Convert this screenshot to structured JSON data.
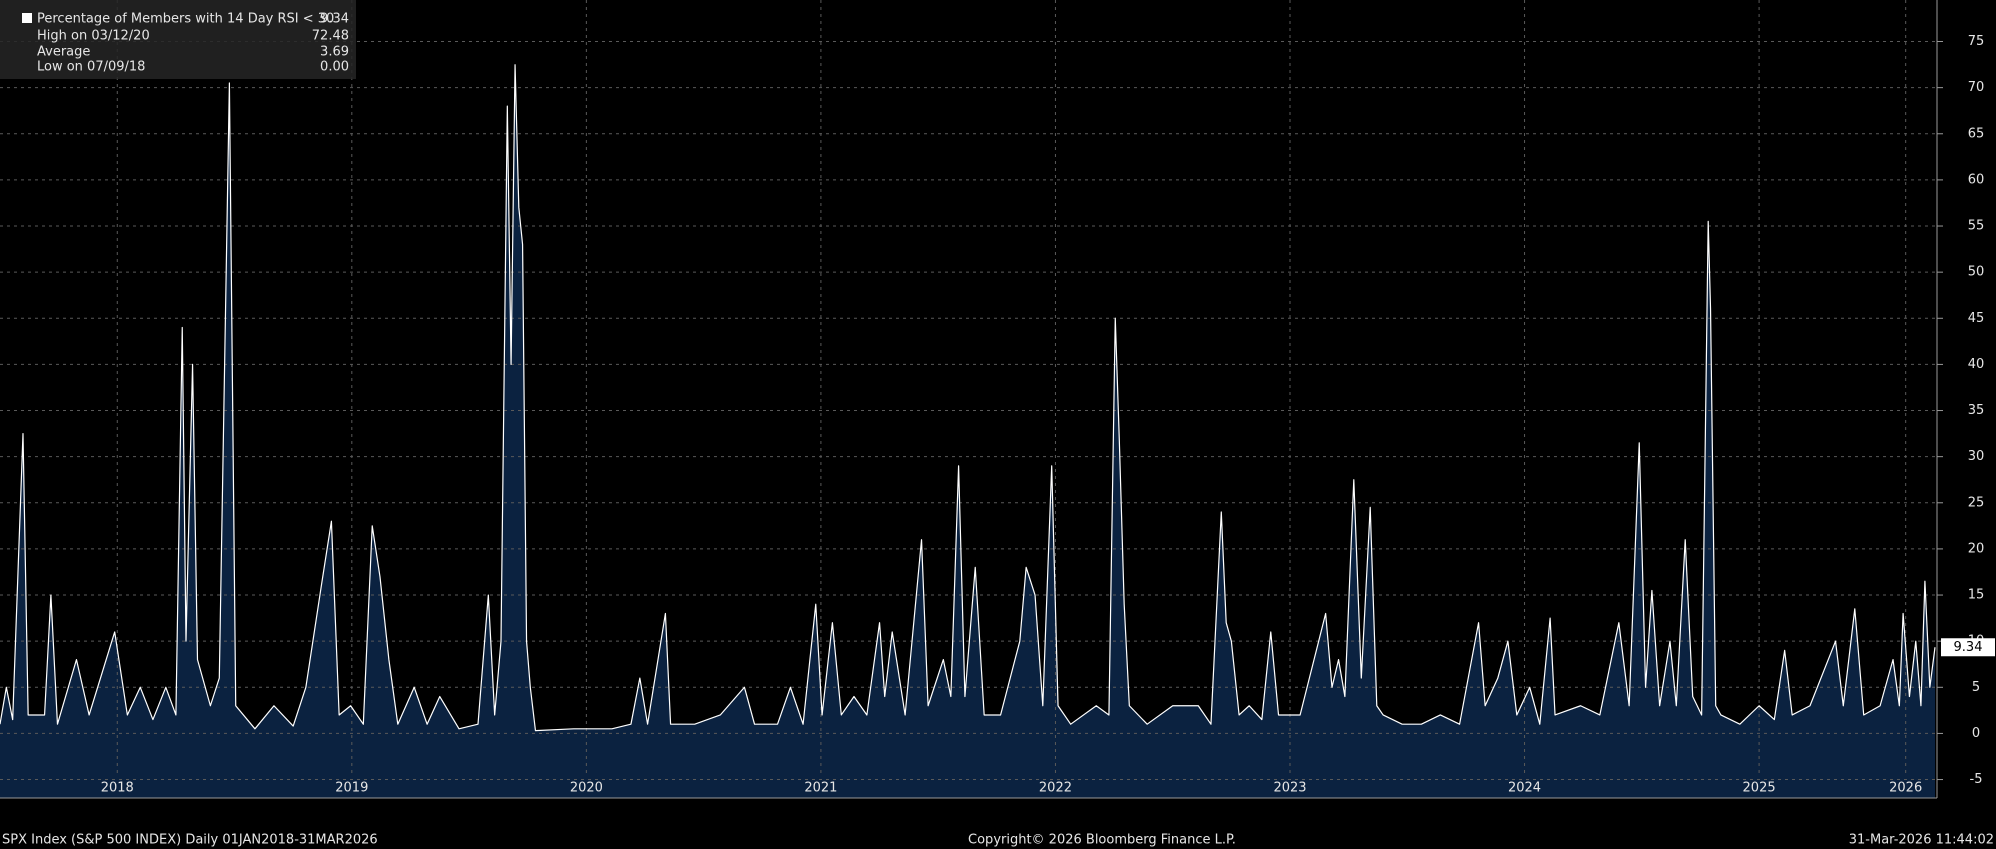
{
  "chart_data": {
    "type": "line",
    "x": [
      2018.0,
      2018.027,
      2018.054,
      2018.098,
      2018.12,
      2018.19,
      2018.217,
      2018.245,
      2018.326,
      2018.38,
      2018.489,
      2018.543,
      2018.598,
      2018.652,
      2018.707,
      2018.75,
      2018.777,
      2018.793,
      2018.821,
      2018.842,
      2018.897,
      2018.935,
      2018.978,
      2019.005,
      2019.087,
      2019.168,
      2019.25,
      2019.304,
      2019.37,
      2019.413,
      2019.446,
      2019.495,
      2019.549,
      2019.587,
      2019.62,
      2019.658,
      2019.696,
      2019.766,
      2019.821,
      2019.875,
      2019.957,
      2020.038,
      2020.082,
      2020.109,
      2020.136,
      2020.163,
      2020.179,
      2020.196,
      2020.212,
      2020.228,
      2020.245,
      2020.261,
      2020.283,
      2020.446,
      2020.609,
      2020.69,
      2020.728,
      2020.761,
      2020.837,
      2020.859,
      2020.962,
      2021.071,
      2021.174,
      2021.217,
      2021.315,
      2021.37,
      2021.424,
      2021.478,
      2021.505,
      2021.549,
      2021.587,
      2021.641,
      2021.696,
      2021.75,
      2021.772,
      2021.804,
      2021.859,
      2021.929,
      2021.957,
      2022.022,
      2022.054,
      2022.087,
      2022.114,
      2022.158,
      2022.196,
      2022.266,
      2022.348,
      2022.375,
      2022.413,
      2022.446,
      2022.484,
      2022.511,
      2022.565,
      2022.674,
      2022.728,
      2022.755,
      2022.772,
      2022.793,
      2022.815,
      2022.891,
      2023.0,
      2023.109,
      2023.163,
      2023.207,
      2023.228,
      2023.25,
      2023.283,
      2023.326,
      2023.38,
      2023.418,
      2023.451,
      2023.543,
      2023.652,
      2023.679,
      2023.707,
      2023.734,
      2023.772,
      2023.804,
      2023.842,
      2023.87,
      2023.897,
      2023.978,
      2024.06,
      2024.141,
      2024.223,
      2024.304,
      2024.332,
      2024.386,
      2024.429,
      2024.467,
      2024.522,
      2024.565,
      2024.609,
      2024.63,
      2024.739,
      2024.821,
      2024.902,
      2024.946,
      2024.989,
      2025.016,
      2025.043,
      2025.076,
      2025.12,
      2025.147,
      2025.185,
      2025.217,
      2025.255,
      2025.283,
      2025.293,
      2025.315,
      2025.337,
      2025.418,
      2025.5,
      2025.565,
      2025.609,
      2025.641,
      2025.717,
      2025.826,
      2025.859,
      2025.908,
      2025.946,
      2026.016,
      2026.071,
      2026.098,
      2026.114,
      2026.141,
      2026.168,
      2026.19,
      2026.207,
      2026.228,
      2026.25
    ],
    "series": [
      {
        "name": "Percentage of Members with 14 Day RSI < 30",
        "color": "#ffffff",
        "fill": "#0b2240",
        "values": [
          1,
          5,
          1.5,
          32.5,
          2,
          2,
          15,
          1,
          8,
          2,
          11,
          2,
          5,
          1.5,
          5,
          2,
          44,
          10,
          40,
          8,
          3,
          6,
          70.5,
          3,
          0.5,
          3,
          0.8,
          5,
          16,
          23,
          2,
          3,
          1,
          22.5,
          17,
          8,
          1,
          5,
          1,
          4,
          0.5,
          1,
          15,
          2,
          10,
          68,
          40,
          72.48,
          57,
          53,
          10,
          5,
          0.3,
          0.5,
          0.5,
          1,
          6,
          1,
          13,
          1,
          1,
          2,
          5,
          1,
          1,
          5,
          1,
          14,
          2,
          12,
          2,
          4,
          2,
          12,
          4,
          11,
          2,
          21,
          3,
          8,
          4,
          29,
          4,
          18,
          2,
          2,
          10,
          18,
          15,
          3,
          29,
          3,
          1,
          3,
          2,
          45,
          32,
          14,
          3,
          1,
          3,
          3,
          1,
          24,
          12,
          10,
          2,
          3,
          1.5,
          11,
          2,
          2,
          13,
          5,
          8,
          4,
          27.5,
          6,
          24.5,
          3,
          2,
          1,
          1,
          2,
          1,
          12,
          3,
          6,
          10,
          2,
          5,
          1,
          12.5,
          2,
          3,
          2,
          12,
          3,
          31.5,
          5,
          15.5,
          3,
          10,
          3,
          21,
          4,
          2,
          55.5,
          46,
          3,
          2,
          1,
          3,
          1.5,
          9,
          2,
          3,
          10,
          3,
          13.5,
          2,
          3,
          8,
          3,
          13,
          4,
          10,
          3,
          16.5,
          5,
          9.34
        ]
      }
    ],
    "current_label": "9.34",
    "stats": [
      {
        "label": "High on 03/12/20",
        "value": "72.48"
      },
      {
        "label": "Average",
        "value": "3.69"
      },
      {
        "label": "Low on 07/09/18",
        "value": "0.00"
      }
    ],
    "xlim": [
      2018,
      2026.25
    ],
    "xticks": [
      {
        "value": 2018.5,
        "label": "2018"
      },
      {
        "value": 2019.5,
        "label": "2019"
      },
      {
        "value": 2020.5,
        "label": "2020"
      },
      {
        "value": 2021.5,
        "label": "2021"
      },
      {
        "value": 2022.5,
        "label": "2022"
      },
      {
        "value": 2023.5,
        "label": "2023"
      },
      {
        "value": 2024.5,
        "label": "2024"
      },
      {
        "value": 2025.5,
        "label": "2025"
      },
      {
        "value": 2026.125,
        "label": "2026"
      }
    ],
    "ylim": [
      -7,
      79.5
    ],
    "yticks": [
      -5,
      0,
      5,
      10,
      15,
      20,
      25,
      30,
      35,
      40,
      45,
      50,
      55,
      60,
      65,
      70,
      75
    ],
    "grid": true,
    "footer_left": "SPX Index (S&P 500 INDEX) Daily 01JAN2018-31MAR2026",
    "footer_center": "Copyright© 2026 Bloomberg Finance L.P.",
    "footer_right": "31-Mar-2026 11:44:02"
  }
}
